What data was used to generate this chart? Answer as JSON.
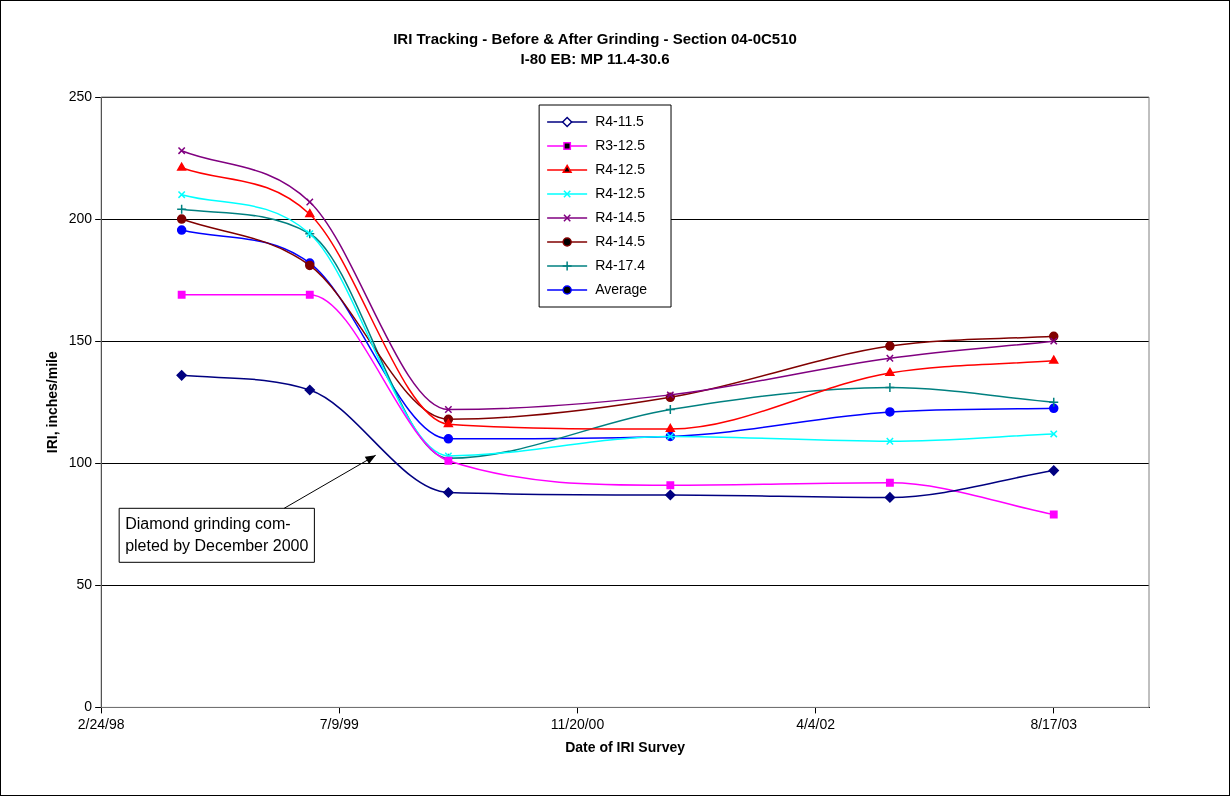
{
  "chart_data": {
    "type": "line",
    "title": "IRI Tracking - Before & After Grinding - Section 04-0C510",
    "subtitle": "I-80 EB: MP 11.4-30.6",
    "xlabel": "Date of IRI Survey",
    "ylabel": "IRI, inches/mile",
    "x": [
      "1998-08-12",
      "1999-05-08",
      "2000-02-23",
      "2001-06-03",
      "2002-09-07",
      "2003-08-17"
    ],
    "xlim": [
      "1998-02-24",
      "2004-03-04"
    ],
    "xticks": [
      {
        "value": "1998-02-24",
        "label": "2/24/98"
      },
      {
        "value": "1999-07-09",
        "label": "7/9/99"
      },
      {
        "value": "2000-11-20",
        "label": "11/20/00"
      },
      {
        "value": "2002-04-04",
        "label": "4/4/02"
      },
      {
        "value": "2003-08-17",
        "label": "8/17/03"
      }
    ],
    "ylim": [
      0,
      250
    ],
    "yticks": [
      0,
      50,
      100,
      150,
      200,
      250
    ],
    "grid": "y",
    "legend": "top",
    "series": [
      {
        "name": "R4-11.5",
        "color": "#000080",
        "marker": "diamond",
        "values": [
          136,
          130,
          88,
          87,
          86,
          97
        ]
      },
      {
        "name": "R3-12.5",
        "color": "#ff00ff",
        "marker": "square",
        "values": [
          169,
          169,
          101,
          91,
          92,
          79
        ]
      },
      {
        "name": "R4-12.5",
        "color": "#ff0000",
        "marker": "triangle",
        "values": [
          221,
          202,
          116,
          114,
          137,
          142
        ]
      },
      {
        "name": "R4-12.5",
        "color": "#00ffff",
        "marker": "cross",
        "values": [
          210,
          194,
          103,
          111,
          109,
          112
        ]
      },
      {
        "name": "R4-14.5",
        "color": "#800080",
        "marker": "cross",
        "values": [
          228,
          207,
          122,
          128,
          143,
          150
        ]
      },
      {
        "name": "R4-14.5",
        "color": "#800000",
        "marker": "circle",
        "values": [
          200,
          181,
          118,
          127,
          148,
          152
        ]
      },
      {
        "name": "R4-17.4",
        "color": "#008080",
        "marker": "plus",
        "values": [
          204,
          194,
          102,
          122,
          131,
          125
        ]
      },
      {
        "name": "Average",
        "color": "#0000ff",
        "marker": "circle",
        "values": [
          195.5,
          182,
          110,
          111,
          121,
          122.5
        ]
      }
    ],
    "annotations": [
      "Diamond grinding com-\npleted by December 2000"
    ]
  }
}
